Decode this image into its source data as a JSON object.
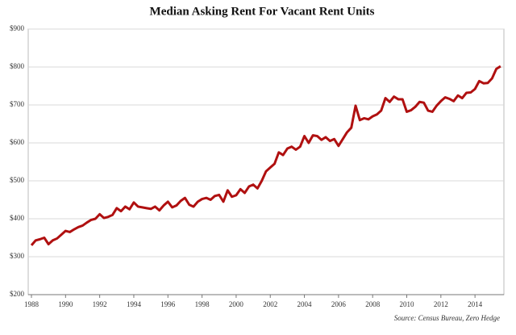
{
  "chart_data": {
    "type": "line",
    "title": "Median Asking Rent For Vacant Rent Units",
    "annotation": "Source: Census Bureau, Zero Hedge",
    "x": [
      1988,
      1988.25,
      1988.5,
      1988.75,
      1989,
      1989.25,
      1989.5,
      1989.75,
      1990,
      1990.25,
      1990.5,
      1990.75,
      1991,
      1991.25,
      1991.5,
      1991.75,
      1992,
      1992.25,
      1992.5,
      1992.75,
      1993,
      1993.25,
      1993.5,
      1993.75,
      1994,
      1994.25,
      1994.5,
      1994.75,
      1995,
      1995.25,
      1995.5,
      1995.75,
      1996,
      1996.25,
      1996.5,
      1996.75,
      1997,
      1997.25,
      1997.5,
      1997.75,
      1998,
      1998.25,
      1998.5,
      1998.75,
      1999,
      1999.25,
      1999.5,
      1999.75,
      2000,
      2000.25,
      2000.5,
      2000.75,
      2001,
      2001.25,
      2001.5,
      2001.75,
      2002,
      2002.25,
      2002.5,
      2002.75,
      2003,
      2003.25,
      2003.5,
      2003.75,
      2004,
      2004.25,
      2004.5,
      2004.75,
      2005,
      2005.25,
      2005.5,
      2005.75,
      2006,
      2006.25,
      2006.5,
      2006.75,
      2007,
      2007.25,
      2007.5,
      2007.75,
      2008,
      2008.25,
      2008.5,
      2008.75,
      2009,
      2009.25,
      2009.5,
      2009.75,
      2010,
      2010.25,
      2010.5,
      2010.75,
      2011,
      2011.25,
      2011.5,
      2011.75,
      2012,
      2012.25,
      2012.5,
      2012.75,
      2013,
      2013.25,
      2013.5,
      2013.75,
      2014,
      2014.25,
      2014.5,
      2014.75,
      2015,
      2015.25,
      2015.5
    ],
    "series": [
      {
        "name": "Median Asking Rent",
        "color": "#b01010",
        "values": [
          330,
          343,
          346,
          350,
          333,
          343,
          348,
          358,
          368,
          365,
          372,
          378,
          382,
          390,
          397,
          400,
          412,
          402,
          405,
          410,
          428,
          420,
          432,
          425,
          443,
          432,
          430,
          428,
          426,
          432,
          422,
          435,
          445,
          430,
          435,
          447,
          455,
          437,
          432,
          445,
          452,
          455,
          450,
          460,
          463,
          445,
          475,
          458,
          462,
          478,
          468,
          485,
          490,
          480,
          500,
          525,
          535,
          545,
          575,
          568,
          585,
          590,
          582,
          590,
          618,
          600,
          620,
          618,
          608,
          615,
          605,
          610,
          592,
          610,
          628,
          640,
          698,
          660,
          665,
          662,
          670,
          675,
          685,
          718,
          708,
          722,
          715,
          715,
          682,
          686,
          695,
          708,
          706,
          685,
          682,
          698,
          710,
          720,
          716,
          710,
          725,
          718,
          732,
          733,
          742,
          763,
          757,
          758,
          770,
          795,
          802
        ]
      }
    ],
    "xlim": [
      1988,
      2015.6
    ],
    "xticks": [
      1988,
      1990,
      1992,
      1994,
      1996,
      1998,
      2000,
      2002,
      2004,
      2006,
      2008,
      2010,
      2012,
      2014
    ],
    "ylim": [
      200,
      900
    ],
    "yticks": [
      {
        "value": 200,
        "label": "$200"
      },
      {
        "value": 300,
        "label": "$300"
      },
      {
        "value": 400,
        "label": "$400"
      },
      {
        "value": 500,
        "label": "$500"
      },
      {
        "value": 600,
        "label": "$600"
      },
      {
        "value": 700,
        "label": "$700"
      },
      {
        "value": 800,
        "label": "$800"
      },
      {
        "value": 900,
        "label": "$900"
      }
    ],
    "grid": true
  }
}
